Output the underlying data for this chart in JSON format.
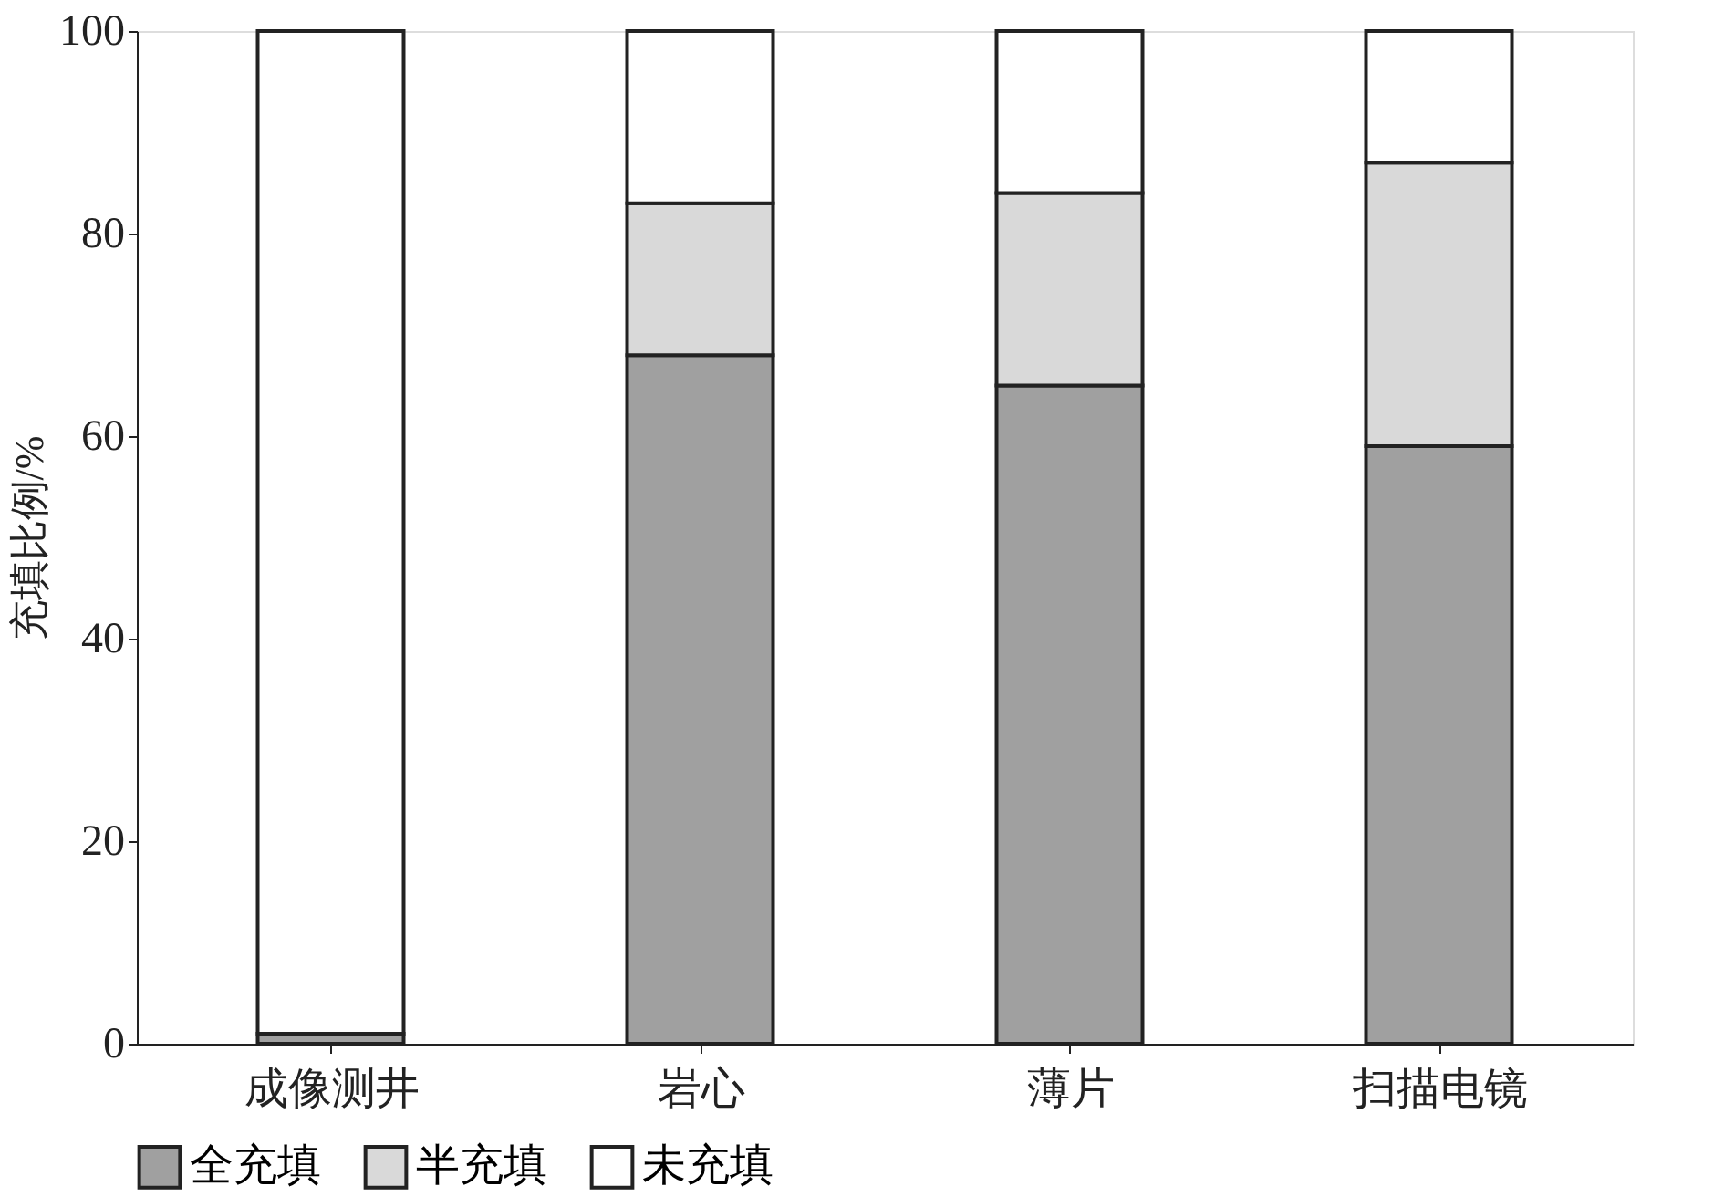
{
  "chart_data": {
    "type": "bar",
    "stacked": true,
    "ylabel": "充填比例/%",
    "categories": [
      "成像测井",
      "岩心",
      "薄片",
      "扫描电镜"
    ],
    "series": [
      {
        "name": "全充填",
        "color": "#a0a0a0",
        "values": [
          1,
          68,
          65,
          59
        ]
      },
      {
        "name": "半充填",
        "color": "#d9d9d9",
        "values": [
          0,
          15,
          19,
          28
        ]
      },
      {
        "name": "未充填",
        "color": "#ffffff",
        "values": [
          99,
          17,
          16,
          13
        ]
      }
    ],
    "ylim": [
      0,
      100
    ],
    "yticks": [
      0,
      20,
      40,
      60,
      80,
      100
    ],
    "grid": false,
    "legend": "bottom"
  }
}
